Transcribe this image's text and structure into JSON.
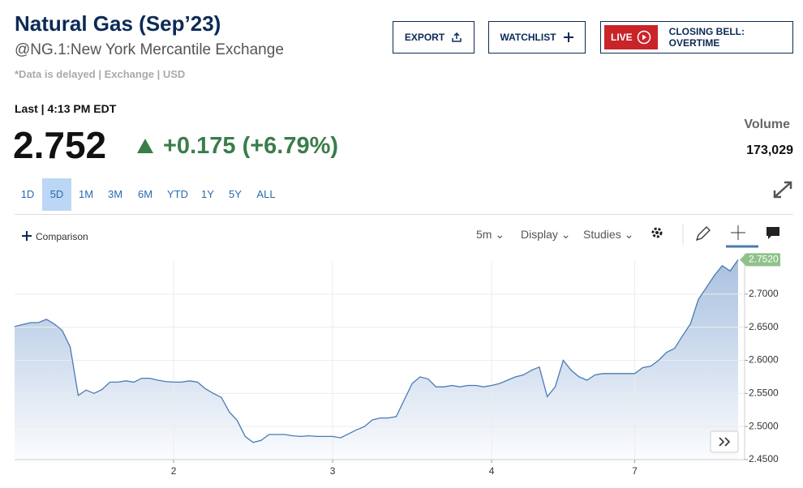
{
  "header": {
    "title": "Natural Gas (Sep’23)",
    "symbol": "@NG.1:New York Mercantile Exchange",
    "disclaimer": "*Data is delayed | Exchange | USD"
  },
  "buttons": {
    "export": "EXPORT",
    "watchlist": "WATCHLIST",
    "live": "LIVE",
    "live_show": "CLOSING BELL: OVERTIME"
  },
  "quote": {
    "last_label": "Last | 4:13 PM EDT",
    "price": "2.752",
    "change": "+0.175 (+6.79%)",
    "volume_label": "Volume",
    "volume": "173,029"
  },
  "ranges": [
    "1D",
    "5D",
    "1M",
    "3M",
    "6M",
    "YTD",
    "1Y",
    "5Y",
    "ALL"
  ],
  "toolbar": {
    "comparison": "Comparison",
    "interval": "5m",
    "display": "Display",
    "studies": "Studies"
  },
  "chart": {
    "type": "line",
    "color": "#4a7ab5",
    "categories": [
      null,
      null,
      null,
      null,
      null,
      null,
      null,
      null,
      null,
      null,
      null,
      null,
      null,
      null,
      null,
      null,
      null,
      null,
      null,
      null,
      "2",
      null,
      null,
      null,
      null,
      null,
      null,
      null,
      null,
      null,
      null,
      null,
      null,
      null,
      null,
      null,
      null,
      null,
      null,
      null,
      "3",
      null,
      null,
      null,
      null,
      null,
      null,
      null,
      null,
      null,
      null,
      null,
      null,
      null,
      null,
      null,
      null,
      null,
      null,
      null,
      "4",
      null,
      null,
      null,
      null,
      null,
      null,
      null,
      null,
      null,
      null,
      null,
      null,
      null,
      null,
      null,
      null,
      null,
      "7",
      null,
      null,
      null,
      null,
      null,
      null,
      null,
      null,
      null,
      null,
      null,
      null,
      null
    ],
    "values": [
      2.651,
      2.654,
      2.657,
      2.657,
      2.662,
      2.655,
      2.645,
      2.62,
      2.547,
      2.555,
      2.55,
      2.556,
      2.567,
      2.567,
      2.569,
      2.567,
      2.573,
      2.573,
      2.57,
      2.568,
      2.567,
      2.567,
      2.569,
      2.567,
      2.557,
      2.55,
      2.544,
      2.522,
      2.509,
      2.485,
      2.476,
      2.479,
      2.488,
      2.488,
      2.488,
      2.486,
      2.485,
      2.486,
      2.485,
      2.485,
      2.485,
      2.483,
      2.489,
      2.495,
      2.5,
      2.51,
      2.513,
      2.513,
      2.515,
      2.54,
      2.565,
      2.575,
      2.572,
      2.56,
      2.56,
      2.562,
      2.56,
      2.562,
      2.562,
      2.56,
      2.562,
      2.565,
      2.57,
      2.575,
      2.578,
      2.585,
      2.59,
      2.545,
      2.56,
      2.6,
      2.585,
      2.575,
      2.57,
      2.578,
      2.58,
      2.58,
      2.58,
      2.58,
      2.58,
      2.589,
      2.591,
      2.6,
      2.612,
      2.618,
      2.637,
      2.655,
      2.692,
      2.71,
      2.728,
      2.743,
      2.735,
      2.752
    ],
    "value_labels": [
      null,
      null,
      null,
      null,
      null,
      null,
      null,
      null,
      null,
      null,
      null,
      null,
      null,
      null,
      null,
      null,
      null,
      null,
      null,
      null,
      null,
      null,
      null,
      null,
      null,
      null,
      null,
      null,
      null,
      null,
      null,
      null,
      null,
      null,
      null,
      null,
      null,
      null,
      null,
      null,
      null,
      null,
      null,
      null,
      null,
      null,
      null,
      null,
      null,
      null,
      null,
      null,
      null,
      null,
      null,
      null,
      null,
      null,
      null,
      null,
      null,
      null,
      null,
      null,
      null,
      null,
      null,
      null,
      null,
      null,
      null,
      null,
      null,
      null,
      null,
      null,
      null,
      null,
      null,
      null,
      null,
      null,
      null,
      null,
      null,
      null,
      null,
      null,
      null,
      null,
      null,
      "2.7520"
    ],
    "ylim": [
      2.45,
      2.75
    ],
    "yticks": [
      {
        "value": 2.45,
        "label": "2.4500"
      },
      {
        "value": 2.5,
        "label": "2.5000"
      },
      {
        "value": 2.55,
        "label": "2.5500"
      },
      {
        "value": 2.6,
        "label": "2.6000"
      },
      {
        "value": 2.65,
        "label": "2.6500"
      },
      {
        "value": 2.7,
        "label": "2.7000"
      }
    ],
    "grid": true
  }
}
